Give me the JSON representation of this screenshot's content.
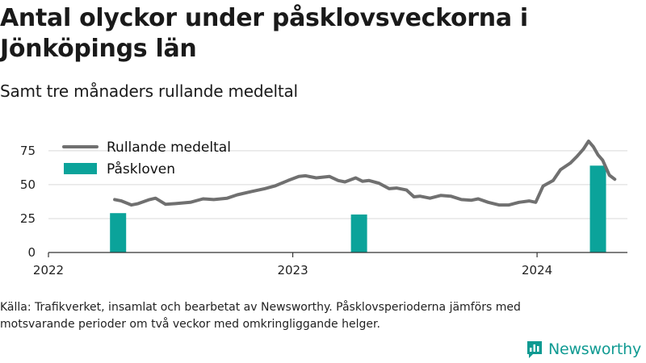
{
  "title": "Antal olyckor under påsklovsveckorna i Jönköpings län",
  "subtitle": "Samt tre månaders rullande medeltal",
  "source": "Källa: Trafikverket, insamlat och bearbetat av Newsworthy. Påsklovsperioderna jämförs med motsvarande perioder om två veckor med omkringliggande helger.",
  "brand": {
    "name": "Newsworthy",
    "logo_icon": "bar-chart-speech-icon"
  },
  "colors": {
    "line": "#707070",
    "bars": "#0ba39a",
    "brand": "#0f9a92",
    "grid": "#d9d9d9",
    "axis": "#333333"
  },
  "chart_data": {
    "type": "bar+line",
    "ylim": [
      0,
      85
    ],
    "yticks": [
      "0",
      "25",
      "50",
      "75"
    ],
    "xticks": [
      "2022",
      "2023",
      "2024"
    ],
    "xlim": [
      "2022-01-01",
      "2024-05-15"
    ],
    "grid": true,
    "legend_position": "top-left",
    "legend": [
      {
        "label": "Rullande medeltal",
        "kind": "line"
      },
      {
        "label": "Påskloven",
        "kind": "bar"
      }
    ],
    "series": [
      {
        "name": "Rullande medeltal",
        "type": "line",
        "points": [
          [
            "2022-04-10",
            39
          ],
          [
            "2022-04-20",
            38
          ],
          [
            "2022-05-05",
            35
          ],
          [
            "2022-05-15",
            36
          ],
          [
            "2022-06-01",
            39
          ],
          [
            "2022-06-10",
            40
          ],
          [
            "2022-06-25",
            35.5
          ],
          [
            "2022-07-10",
            36
          ],
          [
            "2022-08-01",
            37
          ],
          [
            "2022-08-20",
            39.5
          ],
          [
            "2022-09-05",
            39
          ],
          [
            "2022-09-25",
            40
          ],
          [
            "2022-10-10",
            42.5
          ],
          [
            "2022-11-01",
            45
          ],
          [
            "2022-11-20",
            47
          ],
          [
            "2022-12-05",
            49
          ],
          [
            "2022-12-25",
            53
          ],
          [
            "2023-01-10",
            56
          ],
          [
            "2023-01-20",
            56.5
          ],
          [
            "2023-02-05",
            55
          ],
          [
            "2023-02-25",
            56
          ],
          [
            "2023-03-10",
            53
          ],
          [
            "2023-03-20",
            52
          ],
          [
            "2023-04-05",
            55
          ],
          [
            "2023-04-15",
            52.5
          ],
          [
            "2023-04-25",
            53
          ],
          [
            "2023-05-10",
            51
          ],
          [
            "2023-05-25",
            47
          ],
          [
            "2023-06-05",
            47.5
          ],
          [
            "2023-06-20",
            46
          ],
          [
            "2023-07-01",
            41
          ],
          [
            "2023-07-10",
            41.5
          ],
          [
            "2023-07-25",
            40
          ],
          [
            "2023-08-10",
            42
          ],
          [
            "2023-08-25",
            41.5
          ],
          [
            "2023-09-10",
            39
          ],
          [
            "2023-09-25",
            38.5
          ],
          [
            "2023-10-05",
            39.5
          ],
          [
            "2023-10-20",
            37
          ],
          [
            "2023-11-05",
            35
          ],
          [
            "2023-11-20",
            35
          ],
          [
            "2023-12-05",
            37
          ],
          [
            "2023-12-20",
            38
          ],
          [
            "2023-12-30",
            37
          ],
          [
            "2024-01-10",
            49
          ],
          [
            "2024-01-25",
            53
          ],
          [
            "2024-02-05",
            61
          ],
          [
            "2024-02-20",
            66
          ],
          [
            "2024-03-01",
            71
          ],
          [
            "2024-03-10",
            76
          ],
          [
            "2024-03-18",
            82
          ],
          [
            "2024-03-25",
            78
          ],
          [
            "2024-04-01",
            72
          ],
          [
            "2024-04-08",
            68
          ],
          [
            "2024-04-18",
            57
          ],
          [
            "2024-04-26",
            54
          ]
        ]
      },
      {
        "name": "Påskloven",
        "type": "bar",
        "points": [
          [
            "2022-04-15",
            29
          ],
          [
            "2023-04-10",
            28
          ],
          [
            "2024-04-01",
            64
          ]
        ]
      }
    ]
  }
}
